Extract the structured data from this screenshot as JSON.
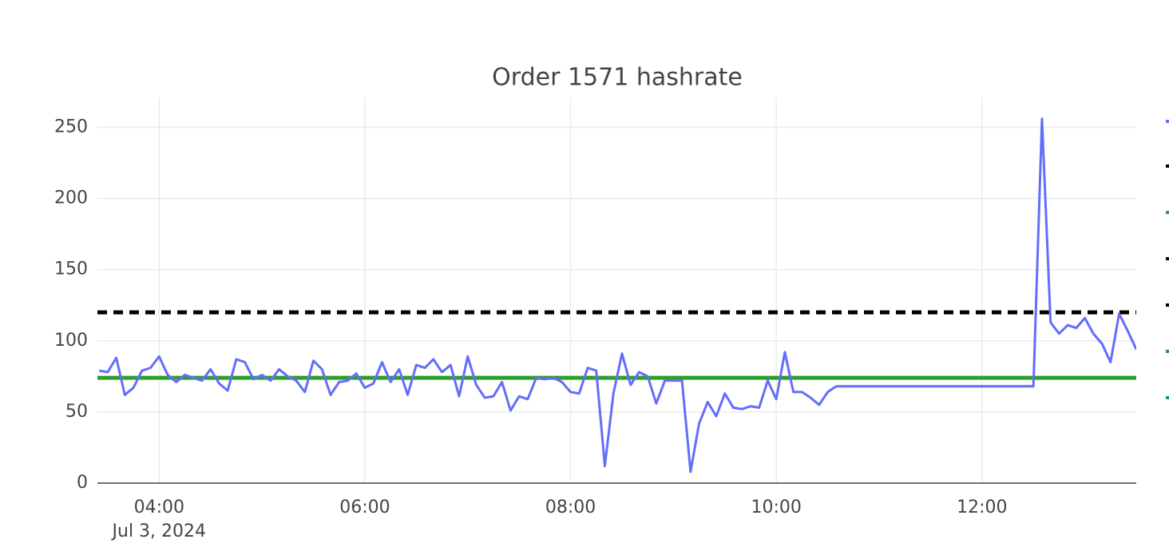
{
  "chart_data": {
    "type": "line",
    "title": "Order 1571 hashrate",
    "x_date_label": "Jul 3, 2024",
    "xlim": [
      "2024-07-03 03:24",
      "2024-07-03 13:30"
    ],
    "xticks": [
      {
        "value": "2024-07-03 04:00",
        "label": "04:00"
      },
      {
        "value": "2024-07-03 06:00",
        "label": "06:00"
      },
      {
        "value": "2024-07-03 08:00",
        "label": "08:00"
      },
      {
        "value": "2024-07-03 10:00",
        "label": "10:00"
      },
      {
        "value": "2024-07-03 12:00",
        "label": "12:00"
      }
    ],
    "ylim": [
      0,
      271
    ],
    "yticks": [
      0,
      50,
      100,
      150,
      200,
      250
    ],
    "grid": true,
    "x": [
      "2024-07-03 03:25",
      "2024-07-03 03:30",
      "2024-07-03 03:35",
      "2024-07-03 03:40",
      "2024-07-03 03:45",
      "2024-07-03 03:50",
      "2024-07-03 03:55",
      "2024-07-03 04:00",
      "2024-07-03 04:05",
      "2024-07-03 04:10",
      "2024-07-03 04:15",
      "2024-07-03 04:20",
      "2024-07-03 04:25",
      "2024-07-03 04:30",
      "2024-07-03 04:35",
      "2024-07-03 04:40",
      "2024-07-03 04:45",
      "2024-07-03 04:50",
      "2024-07-03 04:55",
      "2024-07-03 05:00",
      "2024-07-03 05:05",
      "2024-07-03 05:10",
      "2024-07-03 05:15",
      "2024-07-03 05:20",
      "2024-07-03 05:25",
      "2024-07-03 05:30",
      "2024-07-03 05:35",
      "2024-07-03 05:40",
      "2024-07-03 05:45",
      "2024-07-03 05:50",
      "2024-07-03 05:55",
      "2024-07-03 06:00",
      "2024-07-03 06:05",
      "2024-07-03 06:10",
      "2024-07-03 06:15",
      "2024-07-03 06:20",
      "2024-07-03 06:25",
      "2024-07-03 06:30",
      "2024-07-03 06:35",
      "2024-07-03 06:40",
      "2024-07-03 06:45",
      "2024-07-03 06:50",
      "2024-07-03 06:55",
      "2024-07-03 07:00",
      "2024-07-03 07:05",
      "2024-07-03 07:10",
      "2024-07-03 07:15",
      "2024-07-03 07:20",
      "2024-07-03 07:25",
      "2024-07-03 07:30",
      "2024-07-03 07:35",
      "2024-07-03 07:40",
      "2024-07-03 07:45",
      "2024-07-03 07:50",
      "2024-07-03 07:55",
      "2024-07-03 08:00",
      "2024-07-03 08:05",
      "2024-07-03 08:10",
      "2024-07-03 08:15",
      "2024-07-03 08:20",
      "2024-07-03 08:25",
      "2024-07-03 08:30",
      "2024-07-03 08:35",
      "2024-07-03 08:40",
      "2024-07-03 08:45",
      "2024-07-03 08:50",
      "2024-07-03 08:55",
      "2024-07-03 09:00",
      "2024-07-03 09:05",
      "2024-07-03 09:10",
      "2024-07-03 09:15",
      "2024-07-03 09:20",
      "2024-07-03 09:25",
      "2024-07-03 09:30",
      "2024-07-03 09:35",
      "2024-07-03 09:40",
      "2024-07-03 09:45",
      "2024-07-03 09:50",
      "2024-07-03 09:55",
      "2024-07-03 10:00",
      "2024-07-03 10:05",
      "2024-07-03 10:10",
      "2024-07-03 10:15",
      "2024-07-03 10:20",
      "2024-07-03 10:25",
      "2024-07-03 10:30",
      "2024-07-03 10:35",
      "2024-07-03 12:30",
      "2024-07-03 12:35",
      "2024-07-03 12:40",
      "2024-07-03 12:45",
      "2024-07-03 12:50",
      "2024-07-03 12:55",
      "2024-07-03 13:00",
      "2024-07-03 13:05",
      "2024-07-03 13:10",
      "2024-07-03 13:15",
      "2024-07-03 13:20",
      "2024-07-03 13:25",
      "2024-07-03 13:30"
    ],
    "series": [
      {
        "color": "#636efa",
        "values": [
          79,
          78,
          88,
          62,
          67,
          79,
          81,
          89,
          76,
          71,
          76,
          74,
          72,
          80,
          70,
          65,
          87,
          85,
          73,
          76,
          72,
          80,
          75,
          72,
          64,
          86,
          80,
          62,
          71,
          72,
          77,
          67,
          70,
          85,
          71,
          80,
          62,
          83,
          81,
          87,
          78,
          83,
          61,
          89,
          69,
          60,
          61,
          71,
          51,
          61,
          59,
          74,
          73,
          74,
          71,
          64,
          63,
          81,
          79,
          12,
          63,
          91,
          69,
          78,
          75,
          56,
          72,
          72,
          72,
          8,
          42,
          57,
          47,
          63,
          53,
          52,
          54,
          53,
          72,
          59,
          92,
          64,
          64,
          60,
          55,
          64,
          68,
          68,
          256,
          113,
          105,
          111,
          109,
          116,
          105,
          98,
          85,
          119,
          107,
          94
        ]
      }
    ],
    "hlines": [
      {
        "value": 120,
        "color": "#000000",
        "dash": "12 8"
      },
      {
        "value": 74,
        "color": "#2ca02c",
        "dash": "none"
      }
    ]
  }
}
